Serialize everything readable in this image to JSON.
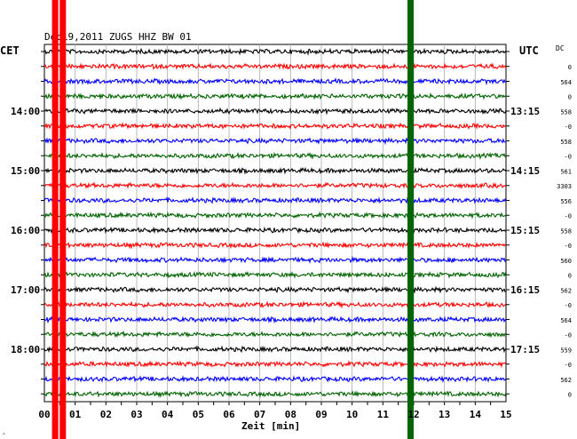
{
  "chart_data": {
    "type": "line",
    "title": "Dec19,2011   ZUGS HHZ BW 01",
    "left_axis_label": "CET",
    "right_axis_label": "UTC",
    "dc_label": "DC",
    "xlabel": "Zeit [min]",
    "xlim": [
      0,
      15
    ],
    "x_ticks": [
      "00",
      "01",
      "02",
      "03",
      "04",
      "05",
      "06",
      "07",
      "08",
      "09",
      "10",
      "11",
      "12",
      "13",
      "14",
      "15"
    ],
    "grid": true,
    "trace_count": 24,
    "trace_colors": [
      "#000000",
      "#ff0000",
      "#0000ff",
      "#006400"
    ],
    "cet_labels": [
      {
        "row": 4,
        "text": "14:00"
      },
      {
        "row": 8,
        "text": "15:00"
      },
      {
        "row": 12,
        "text": "16:00"
      },
      {
        "row": 16,
        "text": "17:00"
      },
      {
        "row": 20,
        "text": "18:00"
      }
    ],
    "utc_labels": [
      {
        "row": 4,
        "text": "13:15"
      },
      {
        "row": 8,
        "text": "14:15"
      },
      {
        "row": 12,
        "text": "15:15"
      },
      {
        "row": 16,
        "text": "16:15"
      },
      {
        "row": 20,
        "text": "17:15"
      }
    ],
    "dc_values": [
      "0",
      "564",
      "0",
      "558",
      "-0",
      "558",
      "-0",
      "561",
      "3303",
      "556",
      "-0",
      "558",
      "-0",
      "560",
      "0",
      "562",
      "-0",
      "564",
      "-0",
      "559",
      "-0",
      "562",
      "0"
    ],
    "events": [
      {
        "name": "red-burst-1",
        "color": "#ff0000",
        "minute": 0.35
      },
      {
        "name": "red-burst-2",
        "color": "#ff0000",
        "minute": 0.6
      },
      {
        "name": "green-burst",
        "color": "#006400",
        "minute": 11.9
      }
    ]
  },
  "corner_mark": "‸"
}
